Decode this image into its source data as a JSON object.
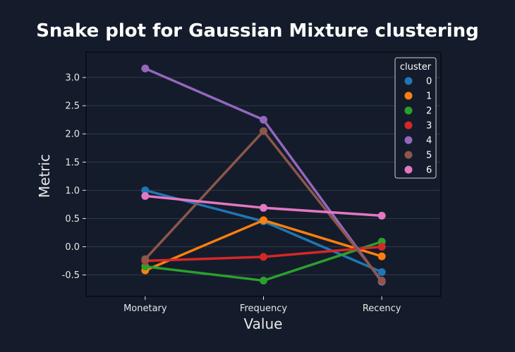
{
  "chart_data": {
    "type": "line",
    "title": "Snake plot for Gaussian Mixture clustering",
    "xlabel": "Value",
    "ylabel": "Metric",
    "categories": [
      "Monetary",
      "Frequency",
      "Recency"
    ],
    "ylim": [
      -0.88,
      3.45
    ],
    "yticks": [
      "-0.5",
      "0.0",
      "0.5",
      "1.0",
      "1.5",
      "2.0",
      "2.5",
      "3.0"
    ],
    "grid": true,
    "legend": {
      "title": "cluster",
      "placement": "top-right"
    },
    "series": [
      {
        "name": "0",
        "color": "#1f77b4",
        "values": [
          1.0,
          0.45,
          -0.45
        ]
      },
      {
        "name": "1",
        "color": "#ff7f0e",
        "values": [
          -0.42,
          0.47,
          -0.17
        ]
      },
      {
        "name": "2",
        "color": "#2ca02c",
        "values": [
          -0.35,
          -0.6,
          0.09
        ]
      },
      {
        "name": "3",
        "color": "#d62728",
        "values": [
          -0.25,
          -0.18,
          0.0
        ]
      },
      {
        "name": "4",
        "color": "#9467bd",
        "values": [
          3.16,
          2.25,
          -0.62
        ]
      },
      {
        "name": "5",
        "color": "#8c564b",
        "values": [
          -0.22,
          2.05,
          -0.6
        ]
      },
      {
        "name": "6",
        "color": "#e377c2",
        "values": [
          0.9,
          0.69,
          0.55
        ]
      }
    ]
  }
}
